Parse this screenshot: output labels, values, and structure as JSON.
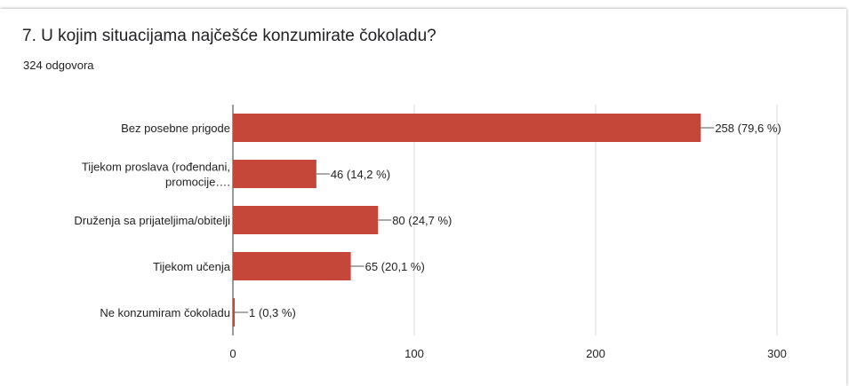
{
  "question": {
    "title": "7. U kojim situacijama najčešće konzumirate čokoladu?",
    "response_count": "324 odgovora"
  },
  "chart_data": {
    "type": "bar",
    "orientation": "horizontal",
    "categories": [
      [
        "Bez posebne prigode"
      ],
      [
        "Tijekom proslava (rođendani,",
        "promocije…."
      ],
      [
        "Druženja sa prijateljima/obitelji"
      ],
      [
        "Tijekom učenja"
      ],
      [
        "Ne konzumiram čokoladu"
      ]
    ],
    "values": [
      258,
      46,
      80,
      65,
      1
    ],
    "data_labels": [
      "258 (79,6 %)",
      "46 (14,2 %)",
      "80 (24,7 %)",
      "65 (20,1 %)",
      "1 (0,3 %)"
    ],
    "xlim": [
      0,
      300
    ],
    "ticks": [
      0,
      100,
      200,
      300
    ],
    "tick_labels": [
      "0",
      "100",
      "200",
      "300"
    ],
    "bar_color": "#c5473a",
    "grid": true,
    "legend": "none"
  }
}
